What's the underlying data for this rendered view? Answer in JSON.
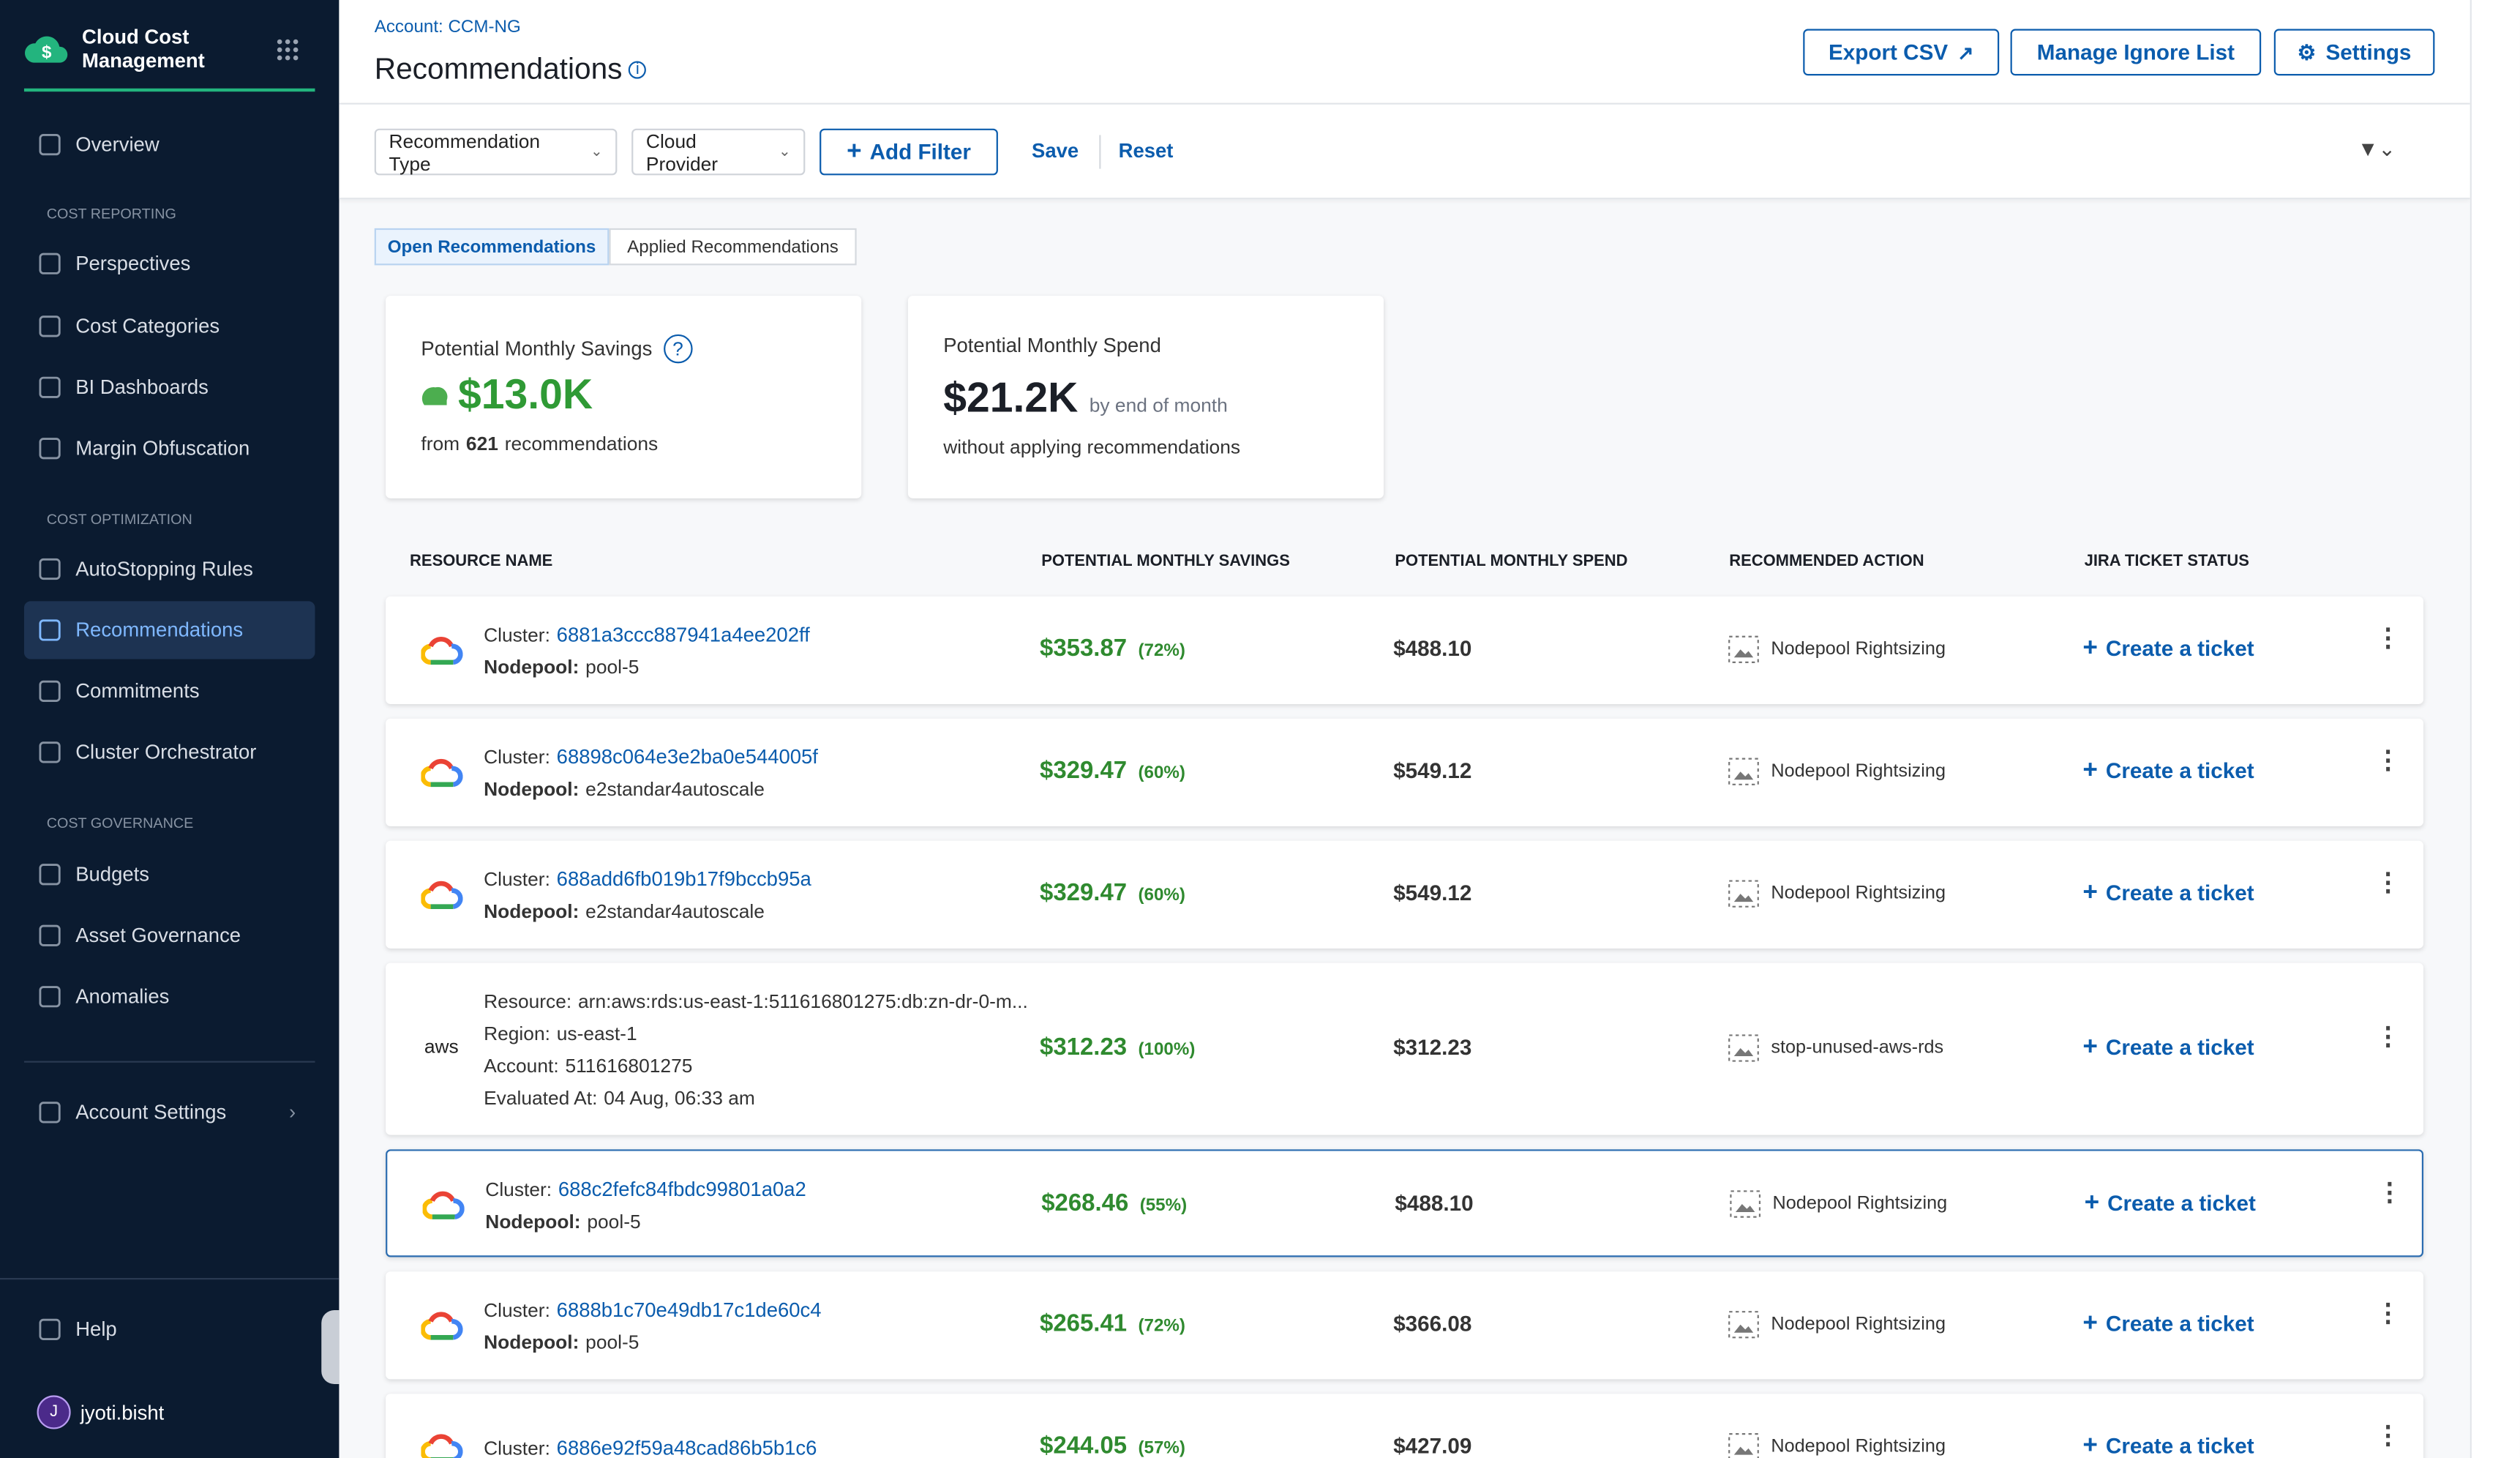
{
  "sidebar": {
    "brand": "Cloud Cost Management",
    "nav": [
      {
        "label": "Overview"
      },
      {
        "section": "COST REPORTING"
      },
      {
        "label": "Perspectives"
      },
      {
        "label": "Cost Categories"
      },
      {
        "label": "BI Dashboards"
      },
      {
        "label": "Margin Obfuscation"
      },
      {
        "section": "COST OPTIMIZATION"
      },
      {
        "label": "AutoStopping Rules"
      },
      {
        "label": "Recommendations",
        "active": true
      },
      {
        "label": "Commitments"
      },
      {
        "label": "Cluster Orchestrator"
      },
      {
        "section": "COST GOVERNANCE"
      },
      {
        "label": "Budgets"
      },
      {
        "label": "Asset Governance"
      },
      {
        "label": "Anomalies"
      }
    ],
    "account_settings": "Account Settings",
    "help": "Help",
    "user": {
      "initial": "J",
      "name": "jyoti.bisht"
    }
  },
  "header": {
    "account": "Account: CCM-NG",
    "title": "Recommendations",
    "buttons": [
      "Export CSV",
      "Manage Ignore List",
      "Settings"
    ]
  },
  "filters": {
    "dropdowns": [
      "Recommendation Type",
      "Cloud Provider"
    ],
    "add": "Add Filter",
    "save": "Save",
    "reset": "Reset"
  },
  "tabs": [
    {
      "label": "Open Recommendations",
      "active": true
    },
    {
      "label": "Applied Recommendations"
    }
  ],
  "cards": {
    "savings": {
      "title": "Potential Monthly Savings",
      "value": "$13.0K",
      "prefix": "from",
      "count": "621",
      "suffix": "recommendations"
    },
    "spend": {
      "title": "Potential Monthly Spend",
      "value": "$21.2K",
      "qualifier": "by end of month",
      "note": "without applying recommendations"
    }
  },
  "table": {
    "headers": [
      "RESOURCE NAME",
      "POTENTIAL MONTHLY SAVINGS",
      "POTENTIAL MONTHLY SPEND",
      "RECOMMENDED ACTION",
      "JIRA TICKET STATUS"
    ],
    "rows": [
      {
        "details": [
          {
            "label": "Cluster:",
            "value": "6881a3ccc887941a4ee202ff"
          },
          {
            "label": "Nodepool:",
            "value": "pool-5"
          }
        ],
        "savings": "$353.87",
        "savings_pct": "(72%)",
        "spend": "$488.10",
        "action": "Nodepool Rightsizing",
        "ticket": "Create a ticket"
      },
      {
        "details": [
          {
            "label": "Cluster:",
            "value": "68898c064e3e2ba0e544005f"
          },
          {
            "label": "Nodepool:",
            "value": "e2standar4autoscale"
          }
        ],
        "savings": "$329.47",
        "savings_pct": "(60%)",
        "spend": "$549.12",
        "action": "Nodepool Rightsizing",
        "ticket": "Create a ticket"
      },
      {
        "details": [
          {
            "label": "Cluster:",
            "value": "688add6fb019b17f9bccb95a"
          },
          {
            "label": "Nodepool:",
            "value": "e2standar4autoscale"
          }
        ],
        "savings": "$329.47",
        "savings_pct": "(60%)",
        "spend": "$549.12",
        "action": "Nodepool Rightsizing",
        "ticket": "Create a ticket"
      },
      {
        "provider_label": "aws",
        "details": [
          {
            "label": "Resource:",
            "value": "arn:aws:rds:us-east-1:511616801275:db:zn-dr-0-m..."
          },
          {
            "label": "Region:",
            "value": "us-east-1"
          },
          {
            "label": "Account:",
            "value": "511616801275"
          },
          {
            "label": "Evaluated At:",
            "value": "04 Aug, 06:33 am"
          }
        ],
        "savings": "$312.23",
        "savings_pct": "(100%)",
        "spend": "$312.23",
        "action": "stop-unused-aws-rds",
        "ticket": "Create a ticket"
      },
      {
        "selected": true,
        "details": [
          {
            "label": "Cluster:",
            "value": "688c2fefc84fbdc99801a0a2"
          },
          {
            "label": "Nodepool:",
            "value": "pool-5"
          }
        ],
        "savings": "$268.46",
        "savings_pct": "(55%)",
        "spend": "$488.10",
        "action": "Nodepool Rightsizing",
        "ticket": "Create a ticket"
      },
      {
        "details": [
          {
            "label": "Cluster:",
            "value": "6888b1c70e49db17c1de60c4"
          },
          {
            "label": "Nodepool:",
            "value": "pool-5"
          }
        ],
        "savings": "$265.41",
        "savings_pct": "(72%)",
        "spend": "$366.08",
        "action": "Nodepool Rightsizing",
        "ticket": "Create a ticket"
      },
      {
        "details": [
          {
            "label": "Cluster:",
            "value": "6886e92f59a48cad86b5b1c6"
          }
        ],
        "savings": "$244.05",
        "savings_pct": "(57%)",
        "spend": "$427.09",
        "action": "Nodepool Rightsizing",
        "ticket": "Create a ticket"
      }
    ]
  }
}
